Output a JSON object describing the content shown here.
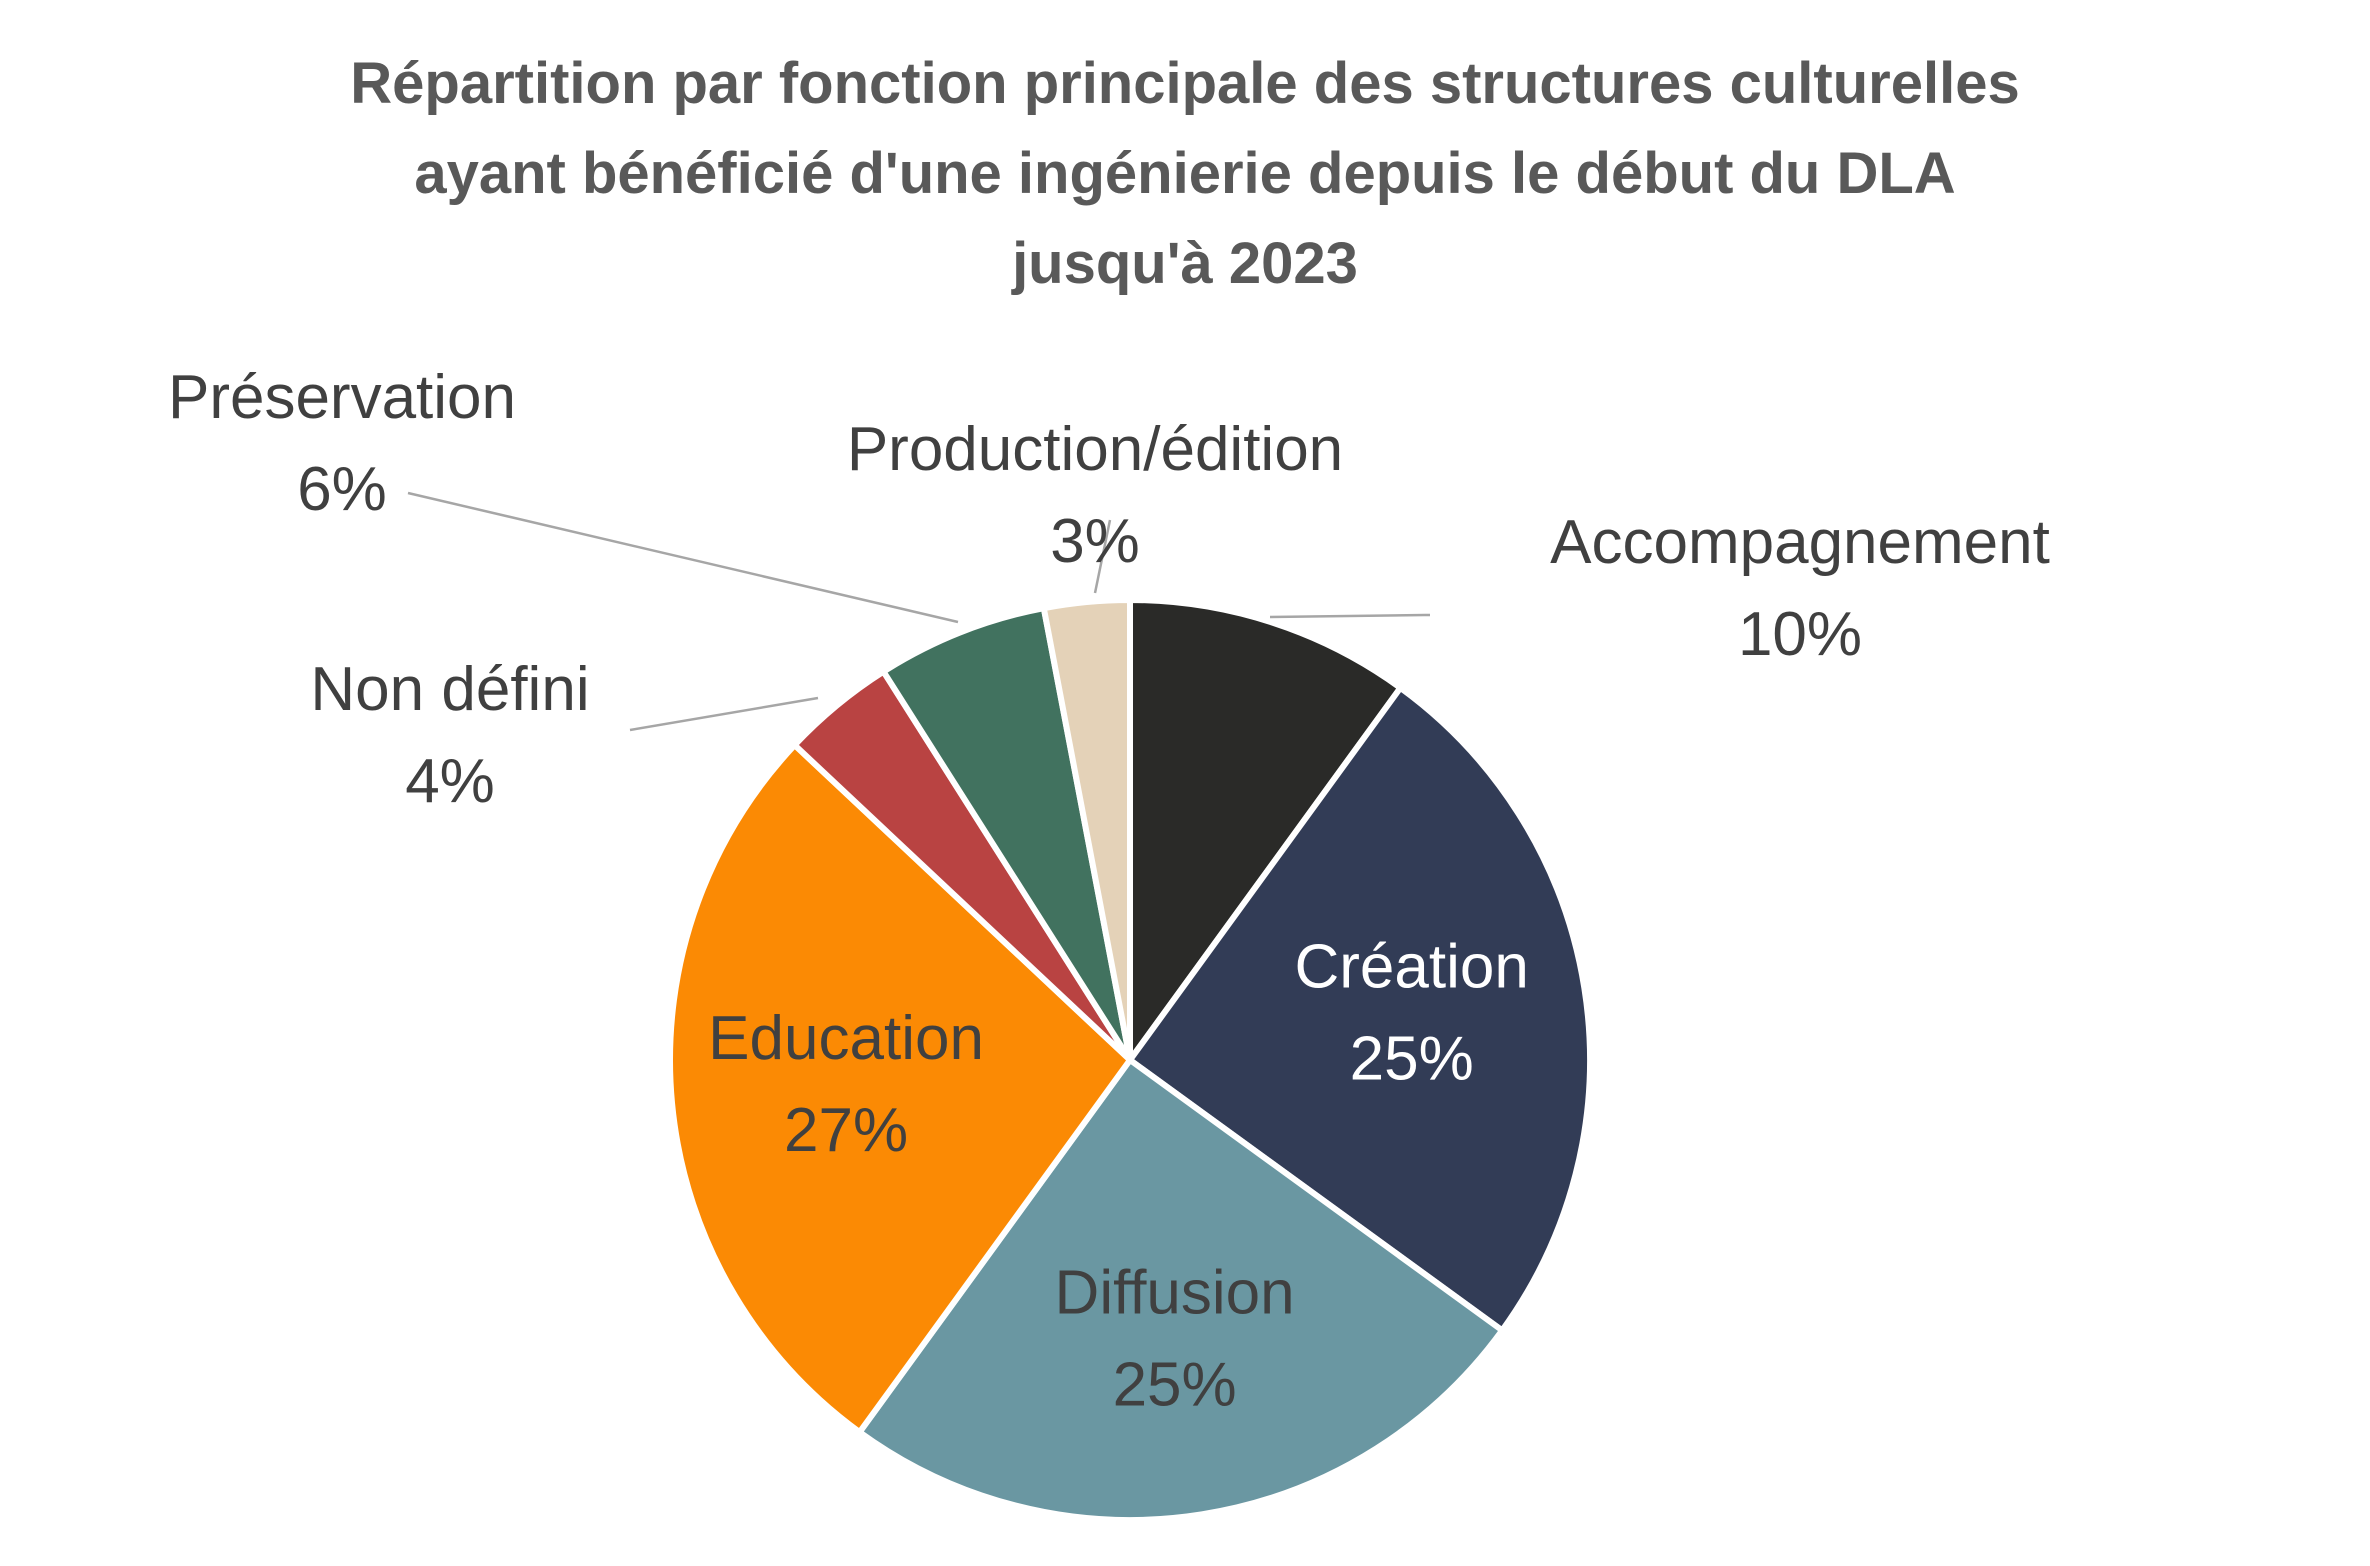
{
  "chart_data": {
    "type": "pie",
    "title": "Répartition par fonction principale des structures culturelles ayant bénéficié d'une ingénierie depuis le début du DLA jusqu'à 2023",
    "title_lines": [
      "Répartition par fonction principale des structures culturelles",
      "ayant bénéficié d'une ingénierie depuis le début du DLA",
      "jusqu'à 2023"
    ],
    "slices": [
      {
        "label": "Accompagnement",
        "value": 10,
        "display": "10%",
        "color": "#2a2a28",
        "label_position": "outside",
        "label_color": "#404040"
      },
      {
        "label": "Création",
        "value": 25,
        "display": "25%",
        "color": "#323c56",
        "label_position": "inside",
        "label_color": "#ffffff"
      },
      {
        "label": "Diffusion",
        "value": 25,
        "display": "25%",
        "color": "#6a97a2",
        "label_position": "inside",
        "label_color": "#404040"
      },
      {
        "label": "Education",
        "value": 27,
        "display": "27%",
        "color": "#fb8a04",
        "label_position": "inside",
        "label_color": "#404040"
      },
      {
        "label": "Non défini",
        "value": 4,
        "display": "4%",
        "color": "#b94342",
        "label_position": "outside",
        "label_color": "#404040"
      },
      {
        "label": "Préservation",
        "value": 6,
        "display": "6%",
        "color": "#41725f",
        "label_position": "outside",
        "label_color": "#404040"
      },
      {
        "label": "Production/édition",
        "value": 3,
        "display": "3%",
        "color": "#e4d2b8",
        "label_position": "outside",
        "label_color": "#404040"
      }
    ],
    "start": "12 o'clock",
    "direction": "clockwise",
    "legend": "none"
  }
}
